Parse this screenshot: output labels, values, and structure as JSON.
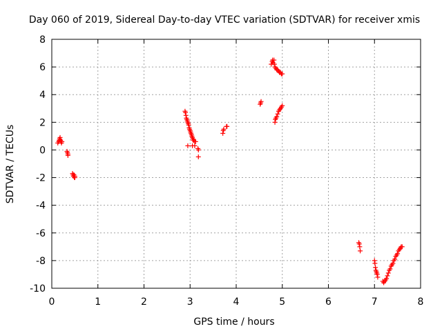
{
  "chart_data": {
    "type": "scatter",
    "title": "Day 060 of 2019, Sidereal Day-to-day VTEC variation (SDTVAR) for receiver xmis",
    "xlabel": "GPS time / hours",
    "ylabel": "SDTVAR / TECUs",
    "xlim": [
      0,
      8
    ],
    "ylim": [
      -10,
      8
    ],
    "x_ticks": [
      0,
      1,
      2,
      3,
      4,
      5,
      6,
      7,
      8
    ],
    "y_ticks": [
      -10,
      -8,
      -6,
      -4,
      -2,
      0,
      2,
      4,
      6,
      8
    ],
    "grid": true,
    "marker": "+",
    "color": "#ff0000",
    "points": [
      [
        0.13,
        0.5
      ],
      [
        0.15,
        0.6
      ],
      [
        0.16,
        0.7
      ],
      [
        0.17,
        0.8
      ],
      [
        0.18,
        0.9
      ],
      [
        0.19,
        0.7
      ],
      [
        0.2,
        0.6
      ],
      [
        0.21,
        0.5
      ],
      [
        0.22,
        0.6
      ],
      [
        0.33,
        -0.1
      ],
      [
        0.34,
        -0.2
      ],
      [
        0.35,
        -0.3
      ],
      [
        0.35,
        -0.4
      ],
      [
        0.45,
        -1.7
      ],
      [
        0.46,
        -1.8
      ],
      [
        0.47,
        -1.9
      ],
      [
        0.48,
        -1.8
      ],
      [
        0.49,
        -2.0
      ],
      [
        0.5,
        -1.9
      ],
      [
        0.5,
        -2.0
      ],
      [
        2.89,
        2.8
      ],
      [
        2.9,
        2.7
      ],
      [
        2.91,
        2.5
      ],
      [
        2.92,
        2.3
      ],
      [
        2.93,
        2.2
      ],
      [
        2.94,
        2.1
      ],
      [
        2.95,
        2.0
      ],
      [
        2.96,
        1.9
      ],
      [
        2.97,
        1.8
      ],
      [
        2.98,
        1.6
      ],
      [
        2.99,
        1.5
      ],
      [
        3.0,
        1.4
      ],
      [
        3.01,
        1.3
      ],
      [
        3.02,
        1.2
      ],
      [
        3.03,
        1.1
      ],
      [
        3.04,
        1.0
      ],
      [
        3.05,
        0.9
      ],
      [
        3.06,
        0.8
      ],
      [
        3.07,
        0.7
      ],
      [
        3.08,
        0.7
      ],
      [
        3.1,
        0.6
      ],
      [
        3.12,
        0.6
      ],
      [
        2.95,
        0.3
      ],
      [
        3.05,
        0.3
      ],
      [
        3.1,
        0.3
      ],
      [
        3.17,
        0.1
      ],
      [
        3.18,
        0.0
      ],
      [
        3.18,
        -0.5
      ],
      [
        3.71,
        1.2
      ],
      [
        3.72,
        1.4
      ],
      [
        3.73,
        1.5
      ],
      [
        3.79,
        1.7
      ],
      [
        3.8,
        1.7
      ],
      [
        4.52,
        3.3
      ],
      [
        4.53,
        3.4
      ],
      [
        4.54,
        3.5
      ],
      [
        4.76,
        6.2
      ],
      [
        4.78,
        6.4
      ],
      [
        4.79,
        6.5
      ],
      [
        4.8,
        6.3
      ],
      [
        4.82,
        6.5
      ],
      [
        4.83,
        6.2
      ],
      [
        4.84,
        6.0
      ],
      [
        4.86,
        5.9
      ],
      [
        4.88,
        5.8
      ],
      [
        4.9,
        5.8
      ],
      [
        4.92,
        5.7
      ],
      [
        4.94,
        5.6
      ],
      [
        4.96,
        5.6
      ],
      [
        4.98,
        5.5
      ],
      [
        5.0,
        5.5
      ],
      [
        4.84,
        2.0
      ],
      [
        4.85,
        2.2
      ],
      [
        4.86,
        2.3
      ],
      [
        4.88,
        2.4
      ],
      [
        4.9,
        2.6
      ],
      [
        4.92,
        2.8
      ],
      [
        4.94,
        2.9
      ],
      [
        4.96,
        3.0
      ],
      [
        4.98,
        3.1
      ],
      [
        5.0,
        3.2
      ],
      [
        6.66,
        -6.7
      ],
      [
        6.67,
        -6.8
      ],
      [
        6.68,
        -7.0
      ],
      [
        6.69,
        -7.3
      ],
      [
        7.0,
        -8.0
      ],
      [
        7.01,
        -8.2
      ],
      [
        7.02,
        -8.5
      ],
      [
        7.03,
        -8.7
      ],
      [
        7.04,
        -8.8
      ],
      [
        7.05,
        -8.9
      ],
      [
        7.06,
        -9.0
      ],
      [
        7.07,
        -9.2
      ],
      [
        7.18,
        -9.5
      ],
      [
        7.2,
        -9.6
      ],
      [
        7.22,
        -9.5
      ],
      [
        7.24,
        -9.4
      ],
      [
        7.26,
        -9.3
      ],
      [
        7.28,
        -9.1
      ],
      [
        7.3,
        -8.9
      ],
      [
        7.32,
        -8.7
      ],
      [
        7.34,
        -8.6
      ],
      [
        7.36,
        -8.4
      ],
      [
        7.38,
        -8.3
      ],
      [
        7.4,
        -8.2
      ],
      [
        7.42,
        -8.0
      ],
      [
        7.44,
        -7.9
      ],
      [
        7.46,
        -7.7
      ],
      [
        7.48,
        -7.6
      ],
      [
        7.5,
        -7.5
      ],
      [
        7.52,
        -7.3
      ],
      [
        7.54,
        -7.2
      ],
      [
        7.56,
        -7.1
      ],
      [
        7.58,
        -7.0
      ],
      [
        7.6,
        -7.0
      ]
    ]
  }
}
